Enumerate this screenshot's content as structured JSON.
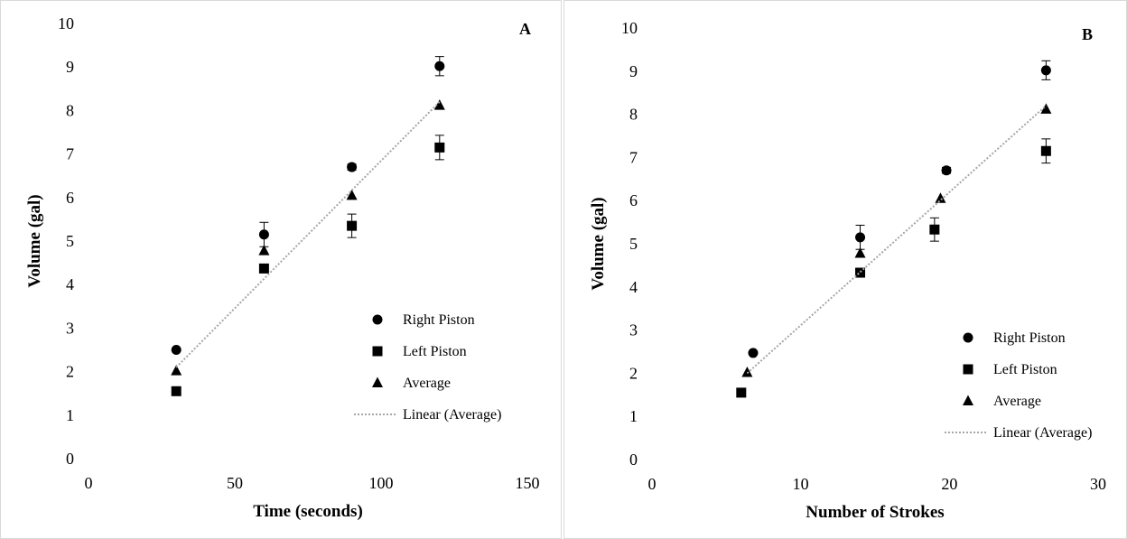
{
  "charts": [
    {
      "chart_data": {
        "type": "scatter",
        "panel_label": "A",
        "xlabel": "Time (seconds)",
        "ylabel": "Volume (gal)",
        "xlim": [
          0,
          150
        ],
        "ylim": [
          0,
          10
        ],
        "x_ticks": [
          0,
          50,
          100,
          150
        ],
        "y_ticks": [
          0,
          1,
          2,
          3,
          4,
          5,
          6,
          7,
          8,
          9,
          10
        ],
        "grid": false,
        "legend_position": "bottom-right",
        "series": [
          {
            "name": "Right Piston",
            "marker": "circle",
            "x": [
              30,
              60,
              90,
              120
            ],
            "y": [
              2.5,
              5.15,
              6.7,
              9.02
            ],
            "error": [
              0.03,
              0.28,
              0.07,
              0.22
            ]
          },
          {
            "name": "Left Piston",
            "marker": "square",
            "x": [
              30,
              60,
              90,
              120
            ],
            "y": [
              1.55,
              4.37,
              5.35,
              7.15
            ],
            "error": [
              0.03,
              0.1,
              0.27,
              0.28
            ]
          },
          {
            "name": "Average",
            "marker": "triangle",
            "x": [
              30,
              60,
              90,
              120
            ],
            "y": [
              2.02,
              4.78,
              6.05,
              8.12
            ],
            "error": []
          },
          {
            "name": "Linear (Average)",
            "marker": "dotted-line",
            "x": [
              30,
              120
            ],
            "y": [
              2.1,
              8.2
            ]
          }
        ]
      }
    },
    {
      "chart_data": {
        "type": "scatter",
        "panel_label": "B",
        "xlabel": "Number of Strokes",
        "ylabel": "Volume (gal)",
        "xlim": [
          0,
          30
        ],
        "ylim": [
          0,
          10
        ],
        "x_ticks": [
          0,
          10,
          20,
          30
        ],
        "y_ticks": [
          0,
          1,
          2,
          3,
          4,
          5,
          6,
          7,
          8,
          9,
          10
        ],
        "grid": false,
        "legend_position": "bottom-right",
        "series": [
          {
            "name": "Right Piston",
            "marker": "circle",
            "x": [
              6.8,
              14,
              19.8,
              26.5
            ],
            "y": [
              2.47,
              5.15,
              6.7,
              9.02
            ],
            "error": [
              0.03,
              0.28,
              0.07,
              0.22
            ]
          },
          {
            "name": "Left Piston",
            "marker": "square",
            "x": [
              6,
              14,
              19,
              26.5
            ],
            "y": [
              1.55,
              4.33,
              5.33,
              7.15
            ],
            "error": [
              0.03,
              0.1,
              0.27,
              0.28
            ]
          },
          {
            "name": "Average",
            "marker": "triangle",
            "x": [
              6.4,
              14,
              19.4,
              26.5
            ],
            "y": [
              2.02,
              4.78,
              6.05,
              8.12
            ],
            "error": []
          },
          {
            "name": "Linear (Average)",
            "marker": "dotted-line",
            "x": [
              6.4,
              26.5
            ],
            "y": [
              2.0,
              8.2
            ]
          }
        ]
      }
    }
  ]
}
